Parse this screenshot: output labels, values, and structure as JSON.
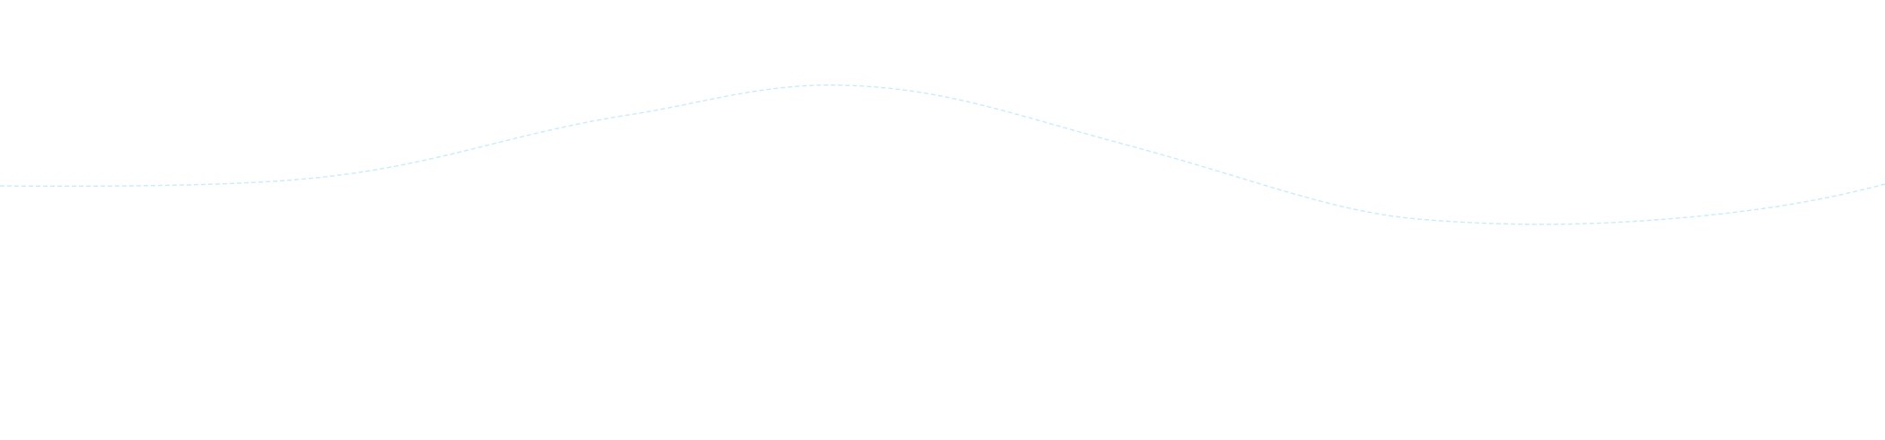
{
  "background_color": "#ffffff",
  "wave": {
    "stroke_color": "#c8ecfb",
    "style": "dashed"
  }
}
